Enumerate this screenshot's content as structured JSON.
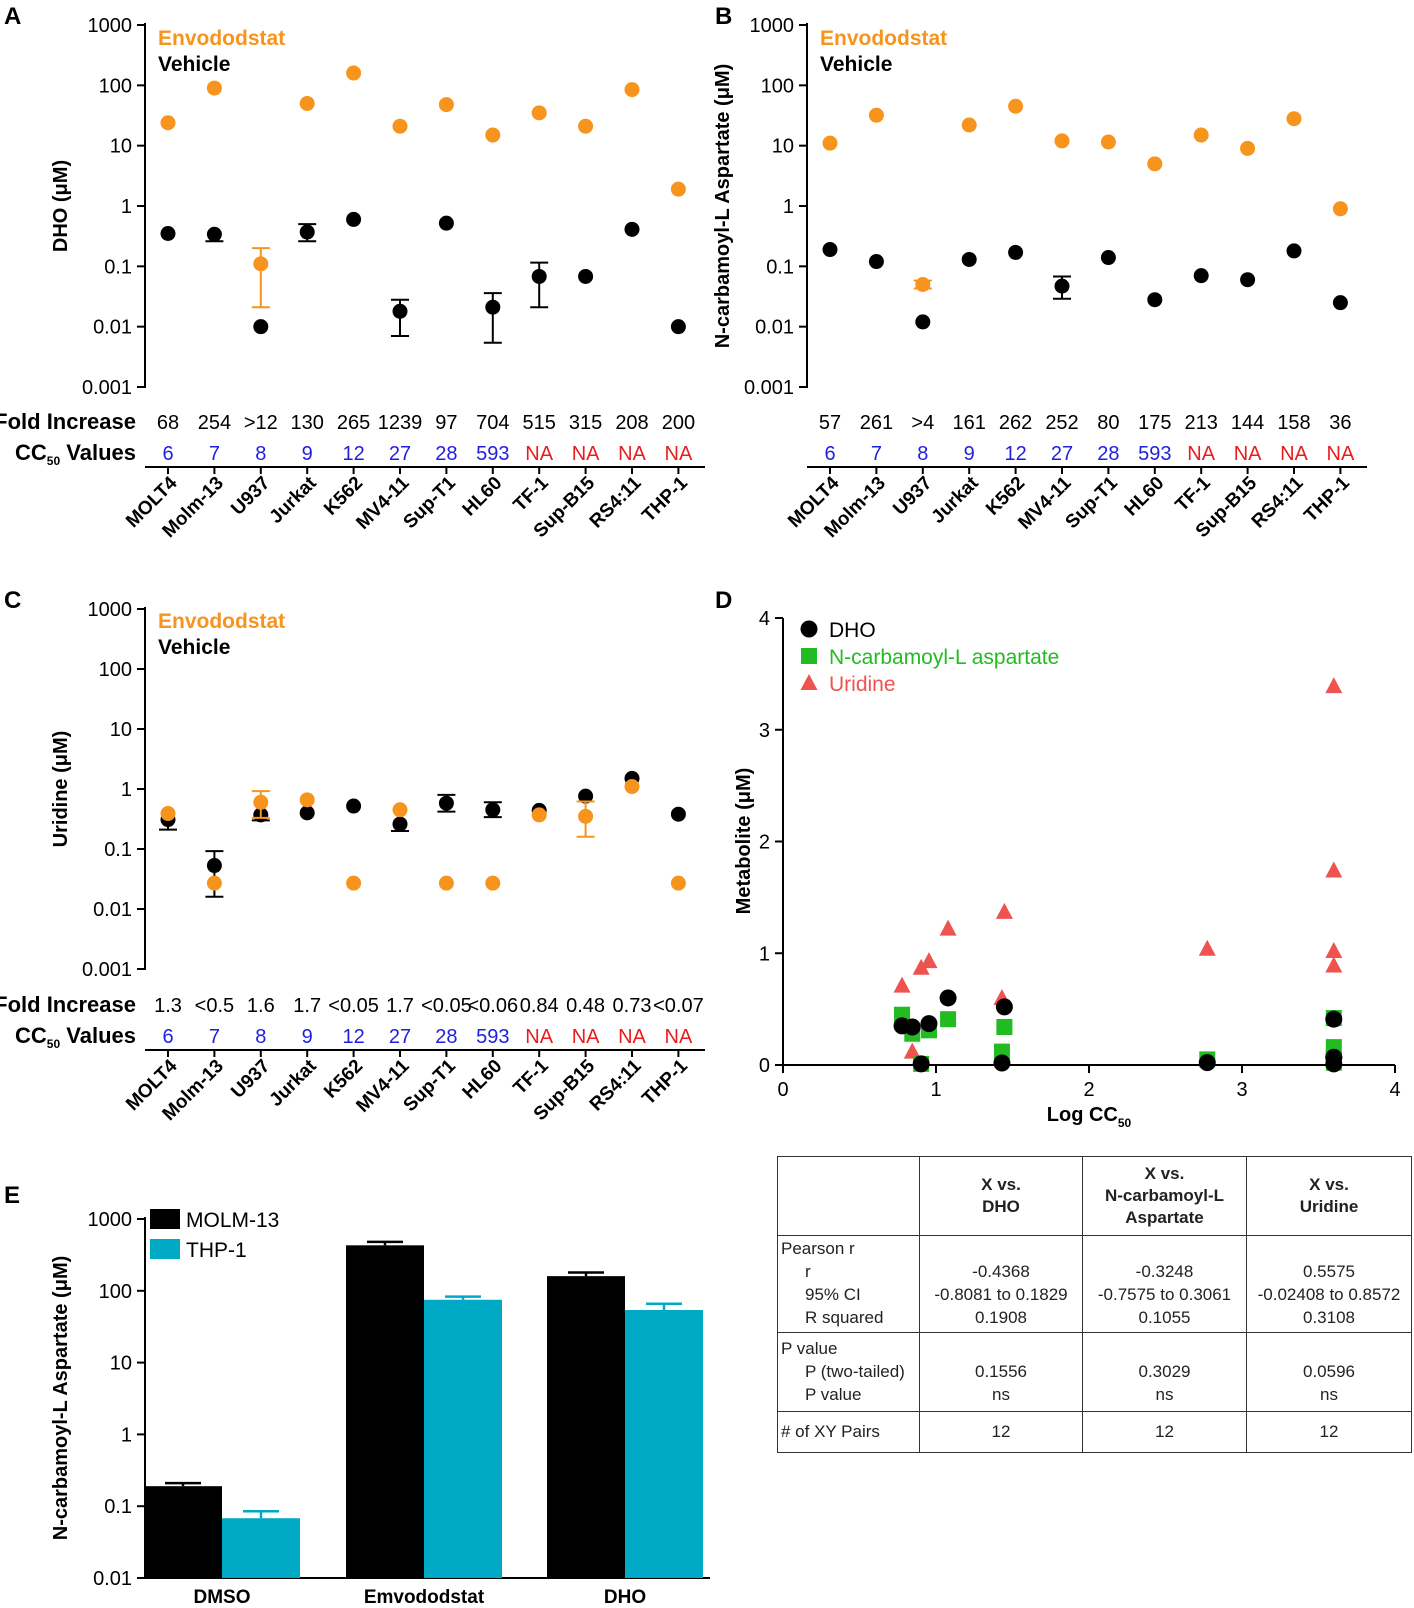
{
  "colors": {
    "vehicle": "#000000",
    "envododstat": "#F7941D",
    "dho": "#000000",
    "ncarb": "#22BB22",
    "uridine": "#EF5350",
    "molm13": "#000000",
    "thp1": "#00A9C5",
    "cc50_low": "#1F1FE0",
    "cc50_na": "#E81E1E"
  },
  "panels": {
    "A": {
      "letter": "A",
      "ylabel": "DHO (μM)"
    },
    "B": {
      "letter": "B",
      "ylabel": "N-carbamoyl-L Aspartate (μM)"
    },
    "C": {
      "letter": "C",
      "ylabel": "Uridine (μM)"
    },
    "D": {
      "letter": "D"
    },
    "E": {
      "letter": "E"
    }
  },
  "row_labels": {
    "fold": "Fold Increase",
    "cc50_prefix": "CC",
    "cc50_sub": "50",
    "cc50_suffix": " Values"
  },
  "legend_drug": {
    "envododstat": "Envododstat",
    "vehicle": "Vehicle"
  },
  "chart_data": [
    {
      "id": "A",
      "type": "scatter",
      "ylabel": "DHO (μM)",
      "yscale": "log",
      "ylim": [
        0.001,
        1000
      ],
      "yticks": [
        "1000",
        "100",
        "10",
        "1",
        "0.1",
        "0.01",
        "0.001"
      ],
      "categories": [
        "MOLT4",
        "Molm-13",
        "U937",
        "Jurkat",
        "K562",
        "MV4-11",
        "Sup-T1",
        "HL60",
        "TF-1",
        "Sup-B15",
        "RS4:11",
        "THP-1"
      ],
      "series": [
        {
          "name": "Envododstat",
          "values": [
            24,
            90,
            0.11,
            50,
            160,
            21,
            48,
            15,
            35,
            21,
            85,
            1.9
          ],
          "err_lo": [
            null,
            null,
            0.021,
            null,
            null,
            null,
            null,
            null,
            null,
            null,
            null,
            null
          ],
          "err_hi": [
            null,
            null,
            0.2,
            null,
            null,
            null,
            null,
            null,
            null,
            null,
            null,
            null
          ]
        },
        {
          "name": "Vehicle",
          "values": [
            0.35,
            0.34,
            0.01,
            0.37,
            0.6,
            0.018,
            0.52,
            0.021,
            0.068,
            0.068,
            0.41,
            0.01
          ],
          "err_lo": [
            null,
            0.26,
            null,
            0.26,
            null,
            0.007,
            null,
            0.0054,
            0.021,
            null,
            null,
            null
          ],
          "err_hi": [
            null,
            null,
            null,
            0.5,
            null,
            0.028,
            null,
            0.036,
            0.115,
            null,
            null,
            null
          ]
        }
      ],
      "fold_increase": [
        "68",
        "254",
        ">12",
        "130",
        "265",
        "1239",
        "97",
        "704",
        "515",
        "315",
        "208",
        "200"
      ],
      "cc50_values": [
        "6",
        "7",
        "8",
        "9",
        "12",
        "27",
        "28",
        "593",
        "NA",
        "NA",
        "NA",
        "NA"
      ]
    },
    {
      "id": "B",
      "type": "scatter",
      "ylabel": "N-carbamoyl-L Aspartate (μM)",
      "yscale": "log",
      "ylim": [
        0.001,
        1000
      ],
      "yticks": [
        "1000",
        "100",
        "10",
        "1",
        "0.1",
        "0.01",
        "0.001"
      ],
      "categories": [
        "MOLT4",
        "Molm-13",
        "U937",
        "Jurkat",
        "K562",
        "MV4-11",
        "Sup-T1",
        "HL60",
        "TF-1",
        "Sup-B15",
        "RS4:11",
        "THP-1"
      ],
      "series": [
        {
          "name": "Envododstat",
          "values": [
            11,
            32,
            0.05,
            22,
            45,
            12,
            11.5,
            5,
            15,
            9,
            28,
            0.9
          ],
          "err_lo": [
            null,
            null,
            0.043,
            null,
            null,
            null,
            null,
            null,
            null,
            null,
            null,
            null
          ],
          "err_hi": [
            null,
            null,
            0.058,
            null,
            null,
            null,
            null,
            null,
            null,
            null,
            null,
            null
          ]
        },
        {
          "name": "Vehicle",
          "values": [
            0.19,
            0.12,
            0.012,
            0.13,
            0.17,
            0.047,
            0.14,
            0.028,
            0.07,
            0.06,
            0.18,
            0.025
          ],
          "err_lo": [
            null,
            null,
            null,
            null,
            null,
            0.029,
            null,
            null,
            null,
            null,
            null,
            null
          ],
          "err_hi": [
            null,
            null,
            null,
            null,
            null,
            0.068,
            null,
            null,
            null,
            null,
            null,
            null
          ]
        }
      ],
      "fold_increase": [
        "57",
        "261",
        ">4",
        "161",
        "262",
        "252",
        "80",
        "175",
        "213",
        "144",
        "158",
        "36"
      ],
      "cc50_values": [
        "6",
        "7",
        "8",
        "9",
        "12",
        "27",
        "28",
        "593",
        "NA",
        "NA",
        "NA",
        "NA"
      ]
    },
    {
      "id": "C",
      "type": "scatter",
      "ylabel": "Uridine (μM)",
      "yscale": "log",
      "ylim": [
        0.001,
        1000
      ],
      "yticks": [
        "1000",
        "100",
        "10",
        "1",
        "0.1",
        "0.01",
        "0.001"
      ],
      "categories": [
        "MOLT4",
        "Molm-13",
        "U937",
        "Jurkat",
        "K562",
        "MV4-11",
        "Sup-T1",
        "HL60",
        "TF-1",
        "Sup-B15",
        "RS4:11",
        "THP-1"
      ],
      "series": [
        {
          "name": "Vehicle",
          "values": [
            0.31,
            0.053,
            0.37,
            0.4,
            0.52,
            0.26,
            0.58,
            0.45,
            0.44,
            0.76,
            1.5,
            0.38
          ],
          "err_lo": [
            0.21,
            0.016,
            0.3,
            null,
            null,
            0.2,
            0.42,
            0.34,
            null,
            null,
            null,
            null
          ],
          "err_hi": [
            null,
            0.092,
            null,
            null,
            null,
            null,
            0.8,
            0.6,
            null,
            null,
            null,
            null
          ]
        },
        {
          "name": "Envododstat",
          "values": [
            0.39,
            0.027,
            0.6,
            0.66,
            0.027,
            0.45,
            0.027,
            0.027,
            0.37,
            0.35,
            1.1,
            0.027
          ],
          "err_lo": [
            null,
            null,
            0.33,
            null,
            null,
            null,
            null,
            null,
            null,
            0.16,
            null,
            null
          ],
          "err_hi": [
            null,
            null,
            0.92,
            null,
            null,
            null,
            null,
            null,
            null,
            0.62,
            null,
            null
          ]
        }
      ],
      "fold_increase": [
        "1.3",
        "<0.5",
        "1.6",
        "1.7",
        "<0.05",
        "1.7",
        "<0.05",
        "<0.06",
        "0.84",
        "0.48",
        "0.73",
        "<0.07"
      ],
      "cc50_values": [
        "6",
        "7",
        "8",
        "9",
        "12",
        "27",
        "28",
        "593",
        "NA",
        "NA",
        "NA",
        "NA"
      ]
    },
    {
      "id": "D",
      "type": "scatter",
      "xlabel": "Log CC",
      "xlabel_sub": "50",
      "ylabel": "Metabolite (μM)",
      "xlim": [
        0,
        4
      ],
      "ylim": [
        0,
        4
      ],
      "xticks": [
        "0",
        "1",
        "2",
        "3",
        "4"
      ],
      "yticks": [
        "0",
        "1",
        "2",
        "3",
        "4"
      ],
      "series": [
        {
          "name": "DHO",
          "marker": "circle",
          "x": [
            0.778,
            0.845,
            0.903,
            0.954,
            1.079,
            1.431,
            1.447,
            2.773,
            3.6,
            3.6,
            3.6,
            3.6
          ],
          "y": [
            0.35,
            0.34,
            0.01,
            0.37,
            0.6,
            0.018,
            0.52,
            0.021,
            0.068,
            0.068,
            0.41,
            0.01
          ]
        },
        {
          "name": "N-carbamoyl-L aspartate",
          "marker": "square",
          "x": [
            0.778,
            0.845,
            0.903,
            0.954,
            1.079,
            1.431,
            1.447,
            2.773,
            3.6,
            3.6,
            3.6,
            3.6
          ],
          "y": [
            0.45,
            0.28,
            0.01,
            0.31,
            0.41,
            0.12,
            0.34,
            0.05,
            0.42,
            0.16,
            0.06,
            0.02
          ]
        },
        {
          "name": "Uridine",
          "marker": "triangle",
          "x": [
            0.778,
            0.845,
            0.903,
            0.954,
            1.079,
            1.431,
            1.447,
            2.773,
            3.6,
            3.6,
            3.6,
            3.6
          ],
          "y": [
            0.71,
            0.12,
            0.87,
            0.93,
            1.22,
            0.6,
            1.37,
            1.04,
            3.39,
            1.74,
            1.02,
            0.89
          ]
        }
      ]
    },
    {
      "id": "E",
      "type": "bar",
      "ylabel": "N-carbamoyl-L Aspartate (μM)",
      "yscale": "log",
      "ylim": [
        0.01,
        1000
      ],
      "yticks": [
        "1000",
        "100",
        "10",
        "1",
        "0.1",
        "0.01"
      ],
      "categories": [
        "DMSO",
        "Emvododstat",
        "DHO"
      ],
      "series": [
        {
          "name": "MOLM-13",
          "values": [
            0.19,
            430,
            160
          ],
          "err_hi": [
            0.21,
            480,
            180
          ]
        },
        {
          "name": "THP-1",
          "values": [
            0.068,
            75,
            54
          ],
          "err_hi": [
            0.085,
            83,
            66
          ]
        }
      ]
    }
  ],
  "stats_table": {
    "headers": [
      {
        "line1": "",
        "line2": "",
        "line3": ""
      },
      {
        "line1": "X vs.",
        "line2": "DHO",
        "line3": ""
      },
      {
        "line1": "X vs.",
        "line2": "N-carbamoyl-L",
        "line3": "Aspartate"
      },
      {
        "line1": "X vs.",
        "line2": "Uridine",
        "line3": ""
      }
    ],
    "pearson": {
      "title": "Pearson r",
      "labels": [
        "r",
        "95% CI",
        "R squared"
      ],
      "cols": [
        [
          "-0.4368",
          "-0.8081 to 0.1829",
          "0.1908"
        ],
        [
          "-0.3248",
          "-0.7575 to 0.3061",
          "0.1055"
        ],
        [
          "0.5575",
          "-0.02408 to 0.8572",
          "0.3108"
        ]
      ]
    },
    "pvalue": {
      "title": "P value",
      "labels": [
        "P (two-tailed)",
        "P value"
      ],
      "cols": [
        [
          "0.1556",
          "ns"
        ],
        [
          "0.3029",
          "ns"
        ],
        [
          "0.0596",
          "ns"
        ]
      ]
    },
    "pairs": {
      "label": "# of XY Pairs",
      "vals": [
        "12",
        "12",
        "12"
      ]
    }
  }
}
